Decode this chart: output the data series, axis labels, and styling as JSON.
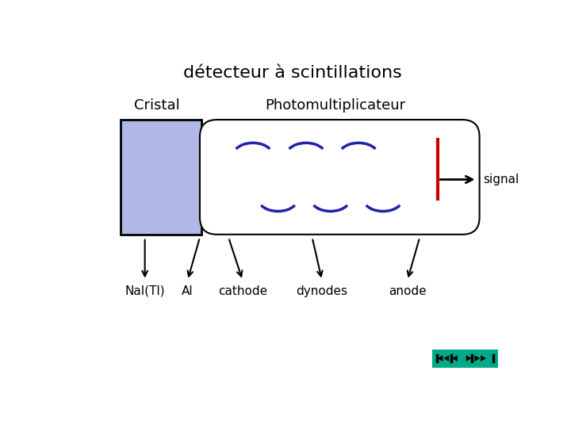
{
  "title": "détecteur à scintillations",
  "title_fontsize": 16,
  "label_cristal": "Cristal",
  "label_photo": "Photomultiplicateur",
  "label_signal": "signal",
  "label_nai": "NaI(Tl)",
  "label_al": "Al",
  "label_cathode": "cathode",
  "label_dynodes": "dynodes",
  "label_anode": "anode",
  "bg_color": "#ffffff",
  "crystal_fill": "#b0b8e8",
  "crystal_edge": "#000000",
  "tube_fill": "#ffffff",
  "tube_edge": "#000000",
  "dynode_color": "#2222aa",
  "anode_color": "#cc0000",
  "arrow_color": "#000000",
  "nav_color": "#00aa88"
}
